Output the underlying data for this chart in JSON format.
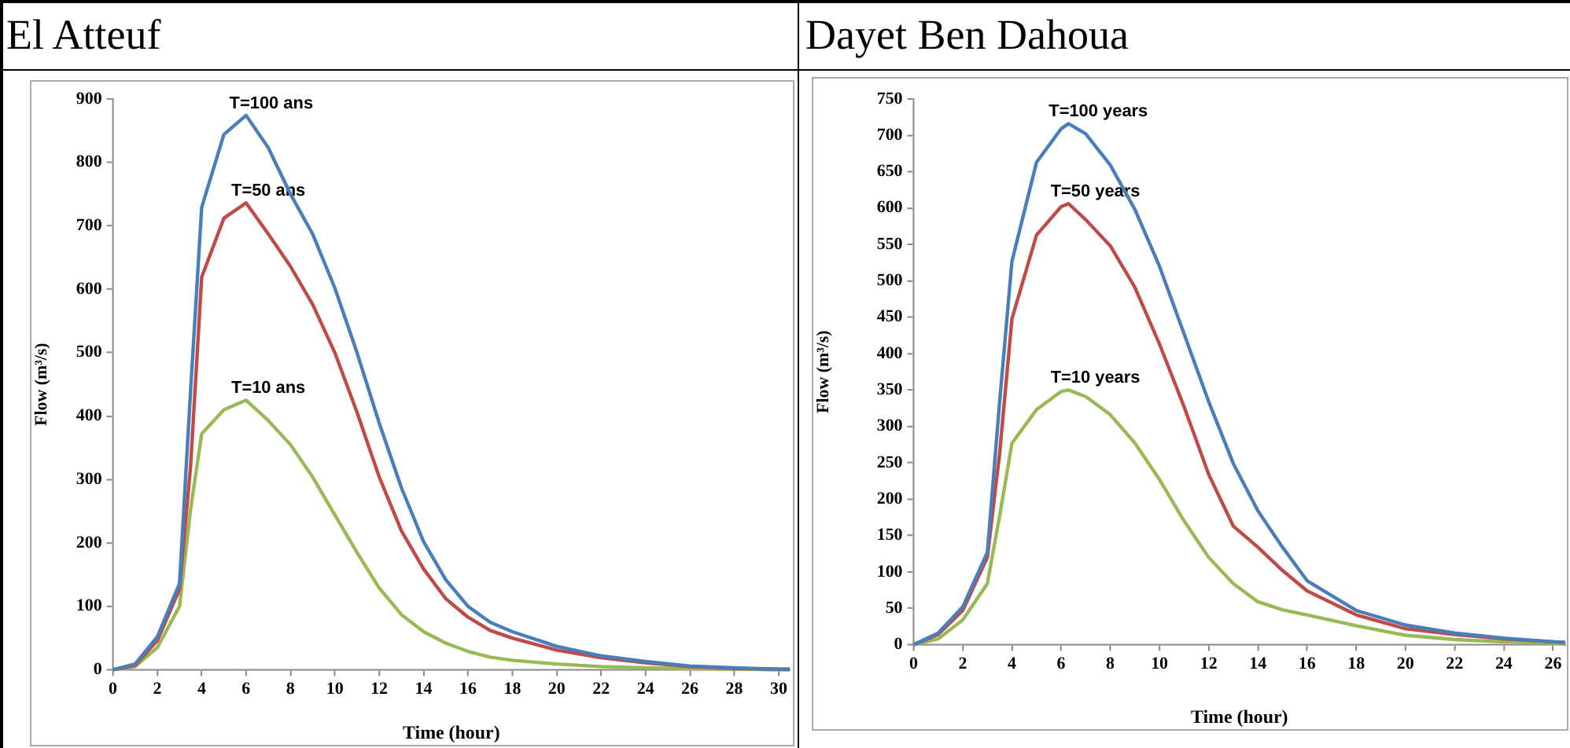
{
  "chart_data": [
    {
      "type": "line",
      "title": "El Atteuf",
      "xlabel": "Time (hour)",
      "ylabel": "Flow (m³/s)",
      "xlim": [
        0,
        30.5
      ],
      "xticks": [
        0,
        2,
        4,
        6,
        8,
        10,
        12,
        14,
        16,
        18,
        20,
        22,
        24,
        26,
        28,
        30
      ],
      "ylim": [
        0,
        900
      ],
      "yticks": [
        0,
        100,
        200,
        300,
        400,
        500,
        600,
        700,
        800,
        900
      ],
      "grid": false,
      "legend": false,
      "marker": "none",
      "series": [
        {
          "name": "T=100 ans",
          "color": "#4a7ebb",
          "x": [
            0,
            1,
            2,
            3,
            3.5,
            4,
            5,
            6,
            7,
            8,
            9,
            10,
            11,
            12,
            13,
            14,
            15,
            16,
            17,
            18,
            20,
            22,
            24,
            26,
            28,
            30,
            30.5
          ],
          "values": [
            0,
            9,
            52,
            136,
            440,
            729,
            844,
            874,
            823,
            750,
            687,
            602,
            500,
            389,
            287,
            202,
            142,
            100,
            75,
            60,
            37,
            22,
            13,
            6,
            3,
            1,
            1
          ]
        },
        {
          "name": "T=50 ans",
          "color": "#be4b48",
          "x": [
            0,
            1,
            2,
            3,
            3.5,
            4,
            5,
            6,
            7,
            8,
            9,
            10,
            11,
            12,
            13,
            14,
            15,
            16,
            17,
            18,
            20,
            22,
            24,
            26,
            28,
            30,
            30.5
          ],
          "values": [
            0,
            7,
            46,
            127,
            321,
            619,
            712,
            736,
            687,
            636,
            576,
            500,
            406,
            304,
            219,
            159,
            112,
            83,
            62,
            50,
            31,
            19,
            11,
            5,
            2,
            1,
            1
          ]
        },
        {
          "name": "T=10 ans",
          "color": "#98b954",
          "x": [
            0,
            1,
            2,
            3,
            3.5,
            4,
            5,
            6,
            7,
            8,
            9,
            10,
            11,
            12,
            13,
            14,
            15,
            16,
            17,
            18,
            20,
            22,
            24,
            26,
            28,
            30,
            30.5
          ],
          "values": [
            0,
            5,
            35,
            100,
            253,
            372,
            410,
            425,
            393,
            355,
            304,
            244,
            185,
            129,
            87,
            60,
            42,
            29,
            20,
            15,
            9,
            5,
            3,
            2,
            1,
            0,
            0
          ]
        }
      ]
    },
    {
      "type": "line",
      "title": "Dayet Ben Dahoua",
      "xlabel": "Time (hour)",
      "ylabel": "Flow (m³/s)",
      "xlim": [
        0,
        26.5
      ],
      "xticks": [
        0,
        2,
        4,
        6,
        8,
        10,
        12,
        14,
        16,
        18,
        20,
        22,
        24,
        26
      ],
      "ylim": [
        0,
        750
      ],
      "yticks": [
        0,
        50,
        100,
        150,
        200,
        250,
        300,
        350,
        400,
        450,
        500,
        550,
        600,
        650,
        700,
        750
      ],
      "grid": false,
      "legend": false,
      "marker": "none",
      "series": [
        {
          "name": "T=100 years",
          "color": "#4a7ebb",
          "x": [
            0,
            1,
            2,
            3,
            3.5,
            4,
            5,
            6,
            6.3,
            7,
            8,
            9,
            10,
            11,
            12,
            13,
            14,
            15,
            16,
            18,
            20,
            22,
            24,
            26,
            26.5
          ],
          "values": [
            0,
            16,
            52,
            127,
            334,
            527,
            663,
            709,
            716,
            702,
            659,
            598,
            520,
            427,
            334,
            249,
            184,
            134,
            88,
            47,
            27,
            16,
            9,
            4,
            3
          ]
        },
        {
          "name": "T=50 years",
          "color": "#be4b48",
          "x": [
            0,
            1,
            2,
            3,
            3.5,
            4,
            5,
            6,
            6.3,
            7,
            8,
            9,
            10,
            11,
            12,
            13,
            14,
            15,
            16,
            18,
            20,
            22,
            24,
            26,
            26.5
          ],
          "values": [
            0,
            14,
            47,
            120,
            263,
            448,
            563,
            602,
            606,
            584,
            548,
            491,
            413,
            327,
            234,
            163,
            134,
            102,
            74,
            41,
            22,
            14,
            8,
            4,
            3
          ]
        },
        {
          "name": "T=10 years",
          "color": "#98b954",
          "x": [
            0,
            1,
            2,
            3,
            3.5,
            4,
            5,
            6,
            6.3,
            7,
            8,
            9,
            10,
            11,
            12,
            13,
            14,
            15,
            16,
            18,
            20,
            22,
            24,
            26,
            26.5
          ],
          "values": [
            0,
            8,
            34,
            84,
            177,
            277,
            323,
            348,
            350,
            341,
            316,
            277,
            227,
            170,
            120,
            84,
            59,
            48,
            41,
            26,
            13,
            7,
            4,
            2,
            1
          ]
        }
      ]
    }
  ]
}
